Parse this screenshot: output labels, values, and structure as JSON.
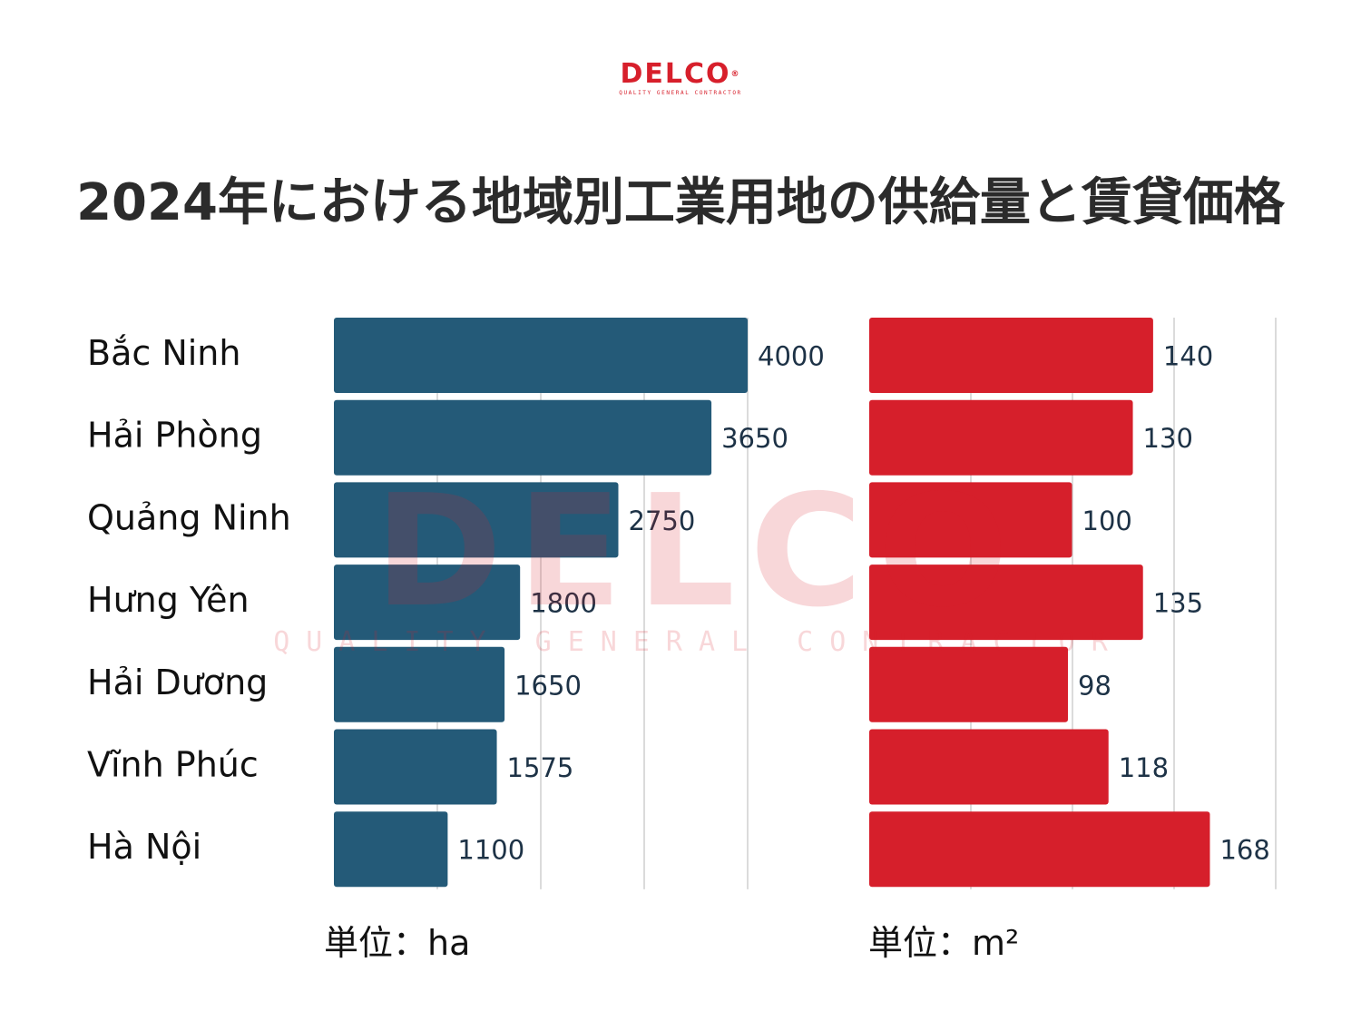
{
  "logo": {
    "name": "DELCO",
    "tagline": "QUALITY GENERAL CONTRACTOR",
    "registered": "®"
  },
  "title": "2024年における地域別工業用地の供給量と賃貸価格",
  "colors": {
    "supply": "#245a78",
    "price": "#d61f2b",
    "grid": "#cfcfcf",
    "brand": "#d71f2b"
  },
  "chart_data": [
    {
      "type": "bar",
      "orientation": "horizontal",
      "categories": [
        "Bắc Ninh",
        "Hải Phòng",
        "Quảng Ninh",
        "Hưng Yên",
        "Hải Dương",
        "Vĩnh Phúc",
        "Hà Nội"
      ],
      "values": [
        4000,
        3650,
        2750,
        1800,
        1650,
        1575,
        1100
      ],
      "xlim": [
        0,
        4000
      ],
      "grid": true,
      "unit_label": "単位：ha"
    },
    {
      "type": "bar",
      "orientation": "horizontal",
      "categories": [
        "Bắc Ninh",
        "Hải Phòng",
        "Quảng Ninh",
        "Hưng Yên",
        "Hải Dương",
        "Vĩnh Phúc",
        "Hà Nội"
      ],
      "values": [
        140,
        130,
        100,
        135,
        98,
        118,
        168
      ],
      "xlim": [
        0,
        200
      ],
      "grid": true,
      "unit_label": "単位：m²"
    }
  ]
}
